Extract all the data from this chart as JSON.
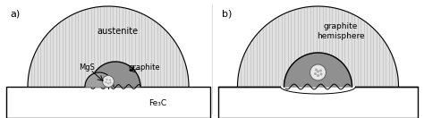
{
  "fig_width": 4.74,
  "fig_height": 1.32,
  "dpi": 100,
  "bg_color": "#ffffff",
  "austenite_fill": "#e0e0e0",
  "austenite_hatch_color": "#c0c0c0",
  "graphite_fill": "#909090",
  "mgs_fill": "#a0a0a0",
  "nucleus_fill": "#e8e8e8",
  "nucleus_edge": "#666666",
  "fe3c_fill": "#ffffff",
  "fe3c_edge": "#000000",
  "label_a": "a)",
  "label_b": "b)",
  "label_austenite": "austenite",
  "label_graphite": "graphite",
  "label_mgs": "MgS",
  "label_fe3c": "Fe₃C",
  "label_graphite_hemisphere": "graphite\nhemisphere"
}
